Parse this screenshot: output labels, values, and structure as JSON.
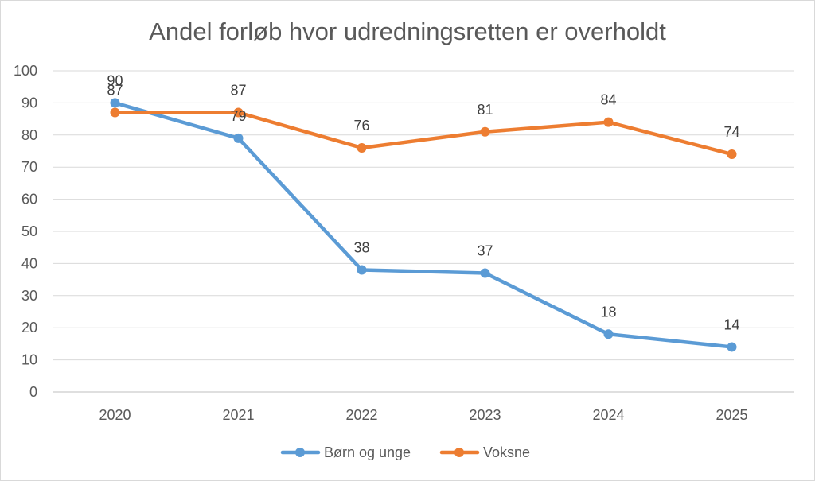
{
  "chart_data": {
    "type": "line",
    "title": "Andel forløb hvor udredningsretten er overholdt",
    "categories": [
      "2020",
      "2021",
      "2022",
      "2023",
      "2024",
      "2025"
    ],
    "ylim": [
      0,
      100
    ],
    "y_ticks": [
      0,
      10,
      20,
      30,
      40,
      50,
      60,
      70,
      80,
      90,
      100
    ],
    "grid": true,
    "legend": "bottom",
    "series": [
      {
        "name": "Børn og unge",
        "values": [
          90,
          79,
          38,
          37,
          18,
          14
        ],
        "color": "#5b9bd5"
      },
      {
        "name": "Voksne",
        "values": [
          87,
          87,
          76,
          81,
          84,
          74
        ],
        "color": "#ed7d31"
      }
    ]
  }
}
